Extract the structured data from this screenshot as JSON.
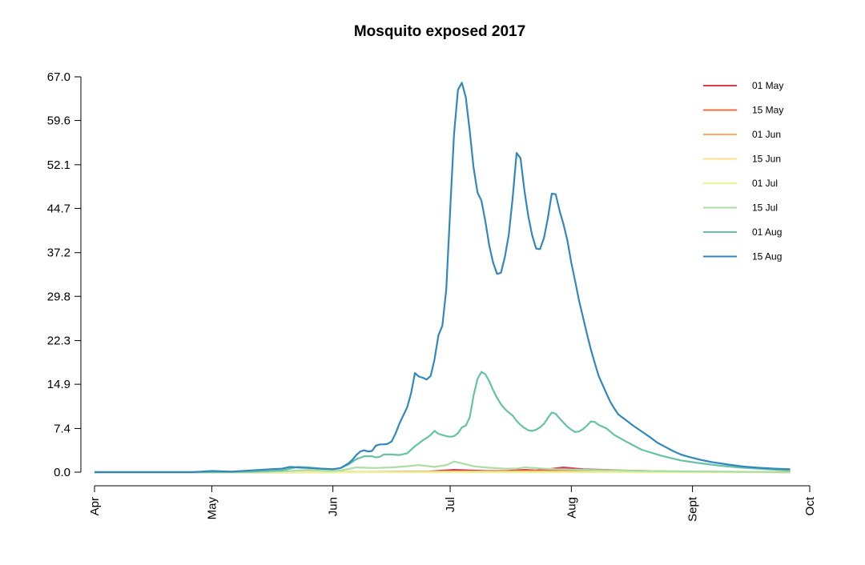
{
  "chart_data": {
    "type": "line",
    "title": "Mosquito exposed 2017",
    "xlabel": "",
    "ylabel": "",
    "ylim": [
      0,
      67.0
    ],
    "y_ticks": [
      "0.0",
      "7.4",
      "14.9",
      "22.3",
      "29.8",
      "37.2",
      "44.7",
      "52.1",
      "59.6",
      "67.0"
    ],
    "x_tick_labels": [
      "Apr",
      "May",
      "Jun",
      "Jul",
      "Aug",
      "Sept",
      "Oct"
    ],
    "x_tick_days": [
      0,
      30,
      61,
      91,
      122,
      153,
      183
    ],
    "x_range_days": [
      0,
      183
    ],
    "legend_position": "top-right",
    "grid": false,
    "series": [
      {
        "name": "01 May",
        "color": "#d53e4f",
        "points": [
          [
            0,
            0
          ],
          [
            50,
            0
          ],
          [
            85,
            0.1
          ],
          [
            92,
            0.4
          ],
          [
            100,
            0.2
          ],
          [
            105,
            0.2
          ],
          [
            110,
            0.4
          ],
          [
            113,
            0.3
          ],
          [
            116,
            0.5
          ],
          [
            120,
            0.8
          ],
          [
            125,
            0.5
          ],
          [
            135,
            0.3
          ],
          [
            150,
            0.1
          ],
          [
            178,
            0
          ]
        ]
      },
      {
        "name": "15 May",
        "color": "#f46d43",
        "points": [
          [
            0,
            0
          ],
          [
            60,
            0
          ],
          [
            90,
            0.1
          ],
          [
            110,
            0.2
          ],
          [
            120,
            0.3
          ],
          [
            135,
            0.1
          ],
          [
            178,
            0
          ]
        ]
      },
      {
        "name": "01 Jun",
        "color": "#fdae61",
        "points": [
          [
            0,
            0
          ],
          [
            60,
            0
          ],
          [
            90,
            0.1
          ],
          [
            115,
            0.1
          ],
          [
            140,
            0.05
          ],
          [
            178,
            0
          ]
        ]
      },
      {
        "name": "15 Jun",
        "color": "#fee08b",
        "points": [
          [
            0,
            0
          ],
          [
            178,
            0
          ]
        ]
      },
      {
        "name": "01 Jul",
        "color": "#e6f598",
        "points": [
          [
            0,
            0
          ],
          [
            178,
            0
          ]
        ]
      },
      {
        "name": "15 Jul",
        "color": "#abdda4",
        "points": [
          [
            0,
            0
          ],
          [
            40,
            0
          ],
          [
            50,
            0.2
          ],
          [
            55,
            0.4
          ],
          [
            60,
            0.2
          ],
          [
            63,
            0.3
          ],
          [
            67,
            0.8
          ],
          [
            72,
            0.7
          ],
          [
            76,
            0.8
          ],
          [
            80,
            1.0
          ],
          [
            83,
            1.2
          ],
          [
            87,
            0.9
          ],
          [
            90,
            1.2
          ],
          [
            92,
            1.8
          ],
          [
            94,
            1.5
          ],
          [
            97,
            1.0
          ],
          [
            100,
            0.8
          ],
          [
            105,
            0.6
          ],
          [
            108,
            0.6
          ],
          [
            110,
            0.8
          ],
          [
            115,
            0.6
          ],
          [
            118,
            0.5
          ],
          [
            125,
            0.4
          ],
          [
            140,
            0.2
          ],
          [
            160,
            0.1
          ],
          [
            178,
            0
          ]
        ]
      },
      {
        "name": "01 Aug",
        "color": "#66c2a5",
        "points": [
          [
            0,
            0
          ],
          [
            30,
            0
          ],
          [
            40,
            0.1
          ],
          [
            48,
            0.3
          ],
          [
            52,
            0.9
          ],
          [
            55,
            0.8
          ],
          [
            58,
            0.6
          ],
          [
            61,
            0.5
          ],
          [
            63,
            0.7
          ],
          [
            65,
            1.3
          ],
          [
            67,
            2.2
          ],
          [
            69,
            2.7
          ],
          [
            71,
            2.7
          ],
          [
            72,
            2.5
          ],
          [
            73,
            2.6
          ],
          [
            74,
            3.0
          ],
          [
            76,
            3.0
          ],
          [
            78,
            2.9
          ],
          [
            80,
            3.2
          ],
          [
            82,
            4.4
          ],
          [
            84,
            5.4
          ],
          [
            85,
            5.8
          ],
          [
            86,
            6.3
          ],
          [
            87,
            7.0
          ],
          [
            88,
            6.5
          ],
          [
            90,
            6.1
          ],
          [
            91,
            6.0
          ],
          [
            92,
            6.1
          ],
          [
            93,
            6.6
          ],
          [
            94,
            7.6
          ],
          [
            95,
            7.9
          ],
          [
            96,
            9.3
          ],
          [
            97,
            13.0
          ],
          [
            98,
            15.8
          ],
          [
            99,
            17.0
          ],
          [
            100,
            16.6
          ],
          [
            101,
            15.4
          ],
          [
            102,
            13.9
          ],
          [
            103,
            12.6
          ],
          [
            104,
            11.5
          ],
          [
            105,
            10.7
          ],
          [
            106,
            10.1
          ],
          [
            107,
            9.6
          ],
          [
            108,
            8.7
          ],
          [
            109,
            8.0
          ],
          [
            110,
            7.5
          ],
          [
            111,
            7.1
          ],
          [
            112,
            7.0
          ],
          [
            113,
            7.2
          ],
          [
            114,
            7.6
          ],
          [
            115,
            8.2
          ],
          [
            116,
            9.2
          ],
          [
            117,
            10.1
          ],
          [
            118,
            9.9
          ],
          [
            119,
            9.1
          ],
          [
            120,
            8.4
          ],
          [
            121,
            7.7
          ],
          [
            122,
            7.2
          ],
          [
            123,
            6.8
          ],
          [
            124,
            6.9
          ],
          [
            125,
            7.3
          ],
          [
            126,
            7.9
          ],
          [
            127,
            8.6
          ],
          [
            128,
            8.5
          ],
          [
            129,
            8.0
          ],
          [
            131,
            7.4
          ],
          [
            133,
            6.3
          ],
          [
            136,
            5.2
          ],
          [
            140,
            3.8
          ],
          [
            145,
            2.8
          ],
          [
            150,
            2.0
          ],
          [
            155,
            1.5
          ],
          [
            160,
            1.1
          ],
          [
            165,
            0.8
          ],
          [
            170,
            0.6
          ],
          [
            175,
            0.4
          ],
          [
            178,
            0.3
          ]
        ]
      },
      {
        "name": "15 Aug",
        "color": "#3288bd",
        "points": [
          [
            0,
            0
          ],
          [
            25,
            0
          ],
          [
            30,
            0.2
          ],
          [
            35,
            0.1
          ],
          [
            40,
            0.3
          ],
          [
            45,
            0.5
          ],
          [
            48,
            0.6
          ],
          [
            50,
            0.9
          ],
          [
            52,
            0.8
          ],
          [
            55,
            0.7
          ],
          [
            58,
            0.6
          ],
          [
            61,
            0.5
          ],
          [
            63,
            0.7
          ],
          [
            65,
            1.5
          ],
          [
            66,
            2.1
          ],
          [
            67,
            2.9
          ],
          [
            68,
            3.5
          ],
          [
            69,
            3.7
          ],
          [
            70,
            3.5
          ],
          [
            71,
            3.6
          ],
          [
            72,
            4.5
          ],
          [
            73,
            4.7
          ],
          [
            74,
            4.7
          ],
          [
            75,
            4.8
          ],
          [
            76,
            5.2
          ],
          [
            77,
            6.5
          ],
          [
            78,
            8.2
          ],
          [
            79,
            9.6
          ],
          [
            80,
            11.0
          ],
          [
            81,
            13.4
          ],
          [
            82,
            16.8
          ],
          [
            83,
            16.2
          ],
          [
            84,
            16.0
          ],
          [
            85,
            15.7
          ],
          [
            86,
            16.3
          ],
          [
            87,
            19.1
          ],
          [
            88,
            23.2
          ],
          [
            89,
            24.8
          ],
          [
            90,
            31.0
          ],
          [
            91,
            44.5
          ],
          [
            92,
            57.3
          ],
          [
            93,
            64.8
          ],
          [
            94,
            66.0
          ],
          [
            95,
            63.5
          ],
          [
            96,
            57.8
          ],
          [
            97,
            51.6
          ],
          [
            98,
            47.4
          ],
          [
            99,
            46.0
          ],
          [
            100,
            42.5
          ],
          [
            101,
            38.4
          ],
          [
            102,
            35.5
          ],
          [
            103,
            33.6
          ],
          [
            104,
            33.8
          ],
          [
            105,
            36.5
          ],
          [
            106,
            40.3
          ],
          [
            107,
            46.5
          ],
          [
            108,
            54.1
          ],
          [
            109,
            53.2
          ],
          [
            110,
            47.7
          ],
          [
            111,
            43.3
          ],
          [
            112,
            40.1
          ],
          [
            113,
            37.9
          ],
          [
            114,
            37.8
          ],
          [
            115,
            39.7
          ],
          [
            116,
            43.1
          ],
          [
            117,
            47.2
          ],
          [
            118,
            47.1
          ],
          [
            119,
            44.3
          ],
          [
            120,
            42.0
          ],
          [
            121,
            39.2
          ],
          [
            122,
            35.5
          ],
          [
            123,
            32.3
          ],
          [
            124,
            29.0
          ],
          [
            125,
            26.2
          ],
          [
            126,
            23.4
          ],
          [
            127,
            20.8
          ],
          [
            128,
            18.5
          ],
          [
            129,
            16.3
          ],
          [
            130,
            14.8
          ],
          [
            131,
            13.3
          ],
          [
            132,
            11.9
          ],
          [
            133,
            10.8
          ],
          [
            134,
            9.8
          ],
          [
            136,
            8.8
          ],
          [
            138,
            7.8
          ],
          [
            140,
            6.9
          ],
          [
            142,
            6.0
          ],
          [
            144,
            5.0
          ],
          [
            146,
            4.3
          ],
          [
            148,
            3.6
          ],
          [
            150,
            3.0
          ],
          [
            152,
            2.6
          ],
          [
            155,
            2.1
          ],
          [
            158,
            1.7
          ],
          [
            162,
            1.3
          ],
          [
            166,
            0.95
          ],
          [
            170,
            0.75
          ],
          [
            174,
            0.6
          ],
          [
            178,
            0.5
          ]
        ]
      }
    ]
  }
}
